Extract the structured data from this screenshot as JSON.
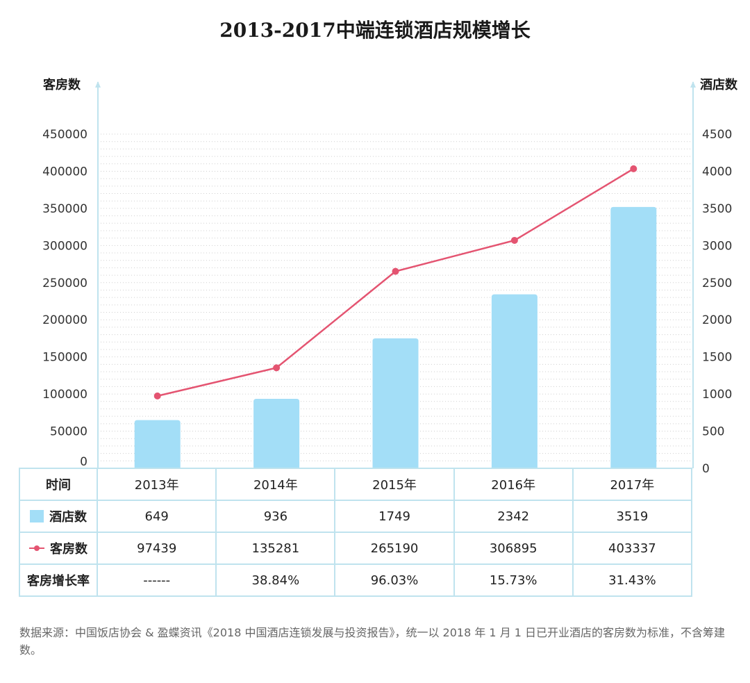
{
  "chart_data": {
    "type": "bar+line",
    "title": "2013-2017中端连锁酒店规模增长",
    "y_left": {
      "label": "客房数",
      "ticks": [
        "450000",
        "400000",
        "350000",
        "300000",
        "250000",
        "200000",
        "150000",
        "100000",
        "50000",
        "0"
      ],
      "range": [
        0,
        450000
      ]
    },
    "y_right": {
      "label": "酒店数",
      "ticks": [
        "4500",
        "4000",
        "3500",
        "3000",
        "2500",
        "2000",
        "1500",
        "1000",
        "500",
        "0"
      ],
      "range": [
        0,
        4500
      ]
    },
    "categories": [
      "2013年",
      "2014年",
      "2015年",
      "2016年",
      "2017年"
    ],
    "series": [
      {
        "name": "酒店数",
        "type": "bar",
        "axis": "right",
        "values": [
          649,
          936,
          1749,
          2342,
          3519
        ],
        "color": "#a3def7"
      },
      {
        "name": "客房数",
        "type": "line",
        "axis": "left",
        "values": [
          97439,
          135281,
          265190,
          306895,
          403337
        ],
        "color": "#e45471"
      }
    ]
  },
  "table": {
    "header_label": "时间",
    "years": [
      "2013年",
      "2014年",
      "2015年",
      "2016年",
      "2017年"
    ],
    "hotels_label": "酒店数",
    "hotels": [
      "649",
      "936",
      "1749",
      "2342",
      "3519"
    ],
    "rooms_label": "客房数",
    "rooms": [
      "97439",
      "135281",
      "265190",
      "306895",
      "403337"
    ],
    "growth_label": "客房增长率",
    "growth": [
      "------",
      "38.84%",
      "96.03%",
      "15.73%",
      "31.43%"
    ]
  },
  "source_note": "数据来源：中国饭店协会 & 盈蝶资讯《2018 中国酒店连锁发展与投资报告》，统一以 2018 年 1 月 1 日已开业酒店的客房数为标准，不含筹建数。"
}
